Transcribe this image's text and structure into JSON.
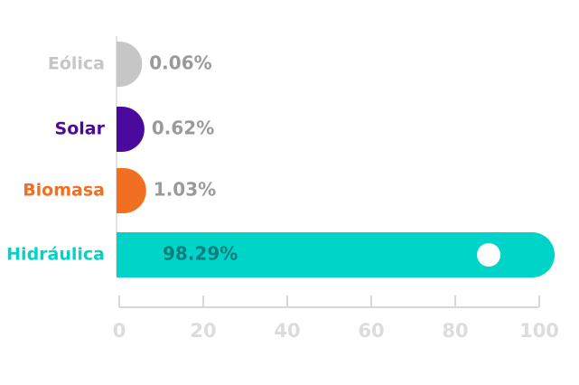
{
  "chart_data": {
    "type": "hbar",
    "categories": [
      "Eólica",
      "Solar",
      "Biomasa",
      "Hidráulica"
    ],
    "values": [
      0.06,
      0.62,
      1.03,
      98.29
    ],
    "value_labels": [
      "0.06%",
      "0.62%",
      "1.03%",
      "98.29%"
    ],
    "colors": [
      "#c6c6c6",
      "#4a0a9e",
      "#f26f21",
      "#00d4c8"
    ],
    "xlim": [
      0,
      100
    ],
    "xticks": [
      0,
      20,
      40,
      60,
      80,
      100
    ]
  }
}
